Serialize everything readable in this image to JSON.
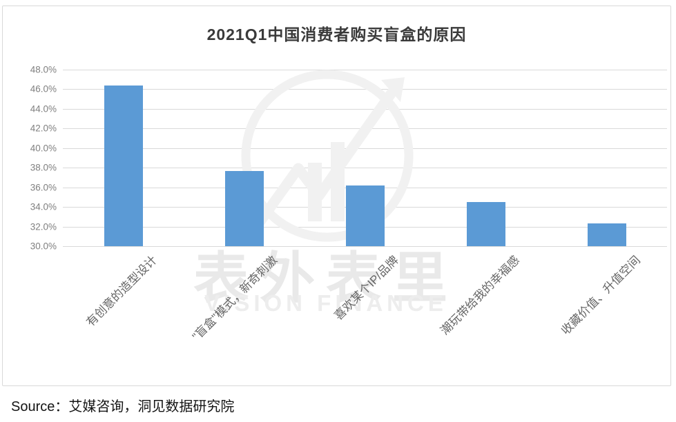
{
  "chart_data": {
    "type": "bar",
    "title": "2021Q1中国消费者购买盲盒的原因",
    "categories": [
      "有创意的造型设计",
      "\"盲盒\"模式，新奇刺激",
      "喜欢某个IP/品牌",
      "潮玩带给我的幸福感",
      "收藏价值、升值空间"
    ],
    "values": [
      46.4,
      37.7,
      36.2,
      34.5,
      32.3
    ],
    "unit": "%",
    "xlabel": "",
    "ylabel": "",
    "ylim": [
      30.0,
      48.0
    ],
    "ytick_step": 2.0,
    "ytick_labels": [
      "48.0%",
      "46.0%",
      "44.0%",
      "42.0%",
      "40.0%",
      "38.0%",
      "36.0%",
      "34.0%",
      "32.0%",
      "30.0%"
    ],
    "grid": true,
    "legend_position": "none"
  },
  "source": {
    "text": "Source：艾媒咨询，洞见数据研究院"
  },
  "watermark": {
    "cn": "表外表里",
    "en": "VISION FINANCE"
  },
  "colors": {
    "bar": "#5b9ad5",
    "gridline": "#d9d9d9",
    "tick_text": "#7f7f7f",
    "xlabel_text": "#666666",
    "title_text": "#3a3a3a",
    "frame_border": "#d9d9d9",
    "watermark": "#ededed",
    "background": "#ffffff"
  }
}
